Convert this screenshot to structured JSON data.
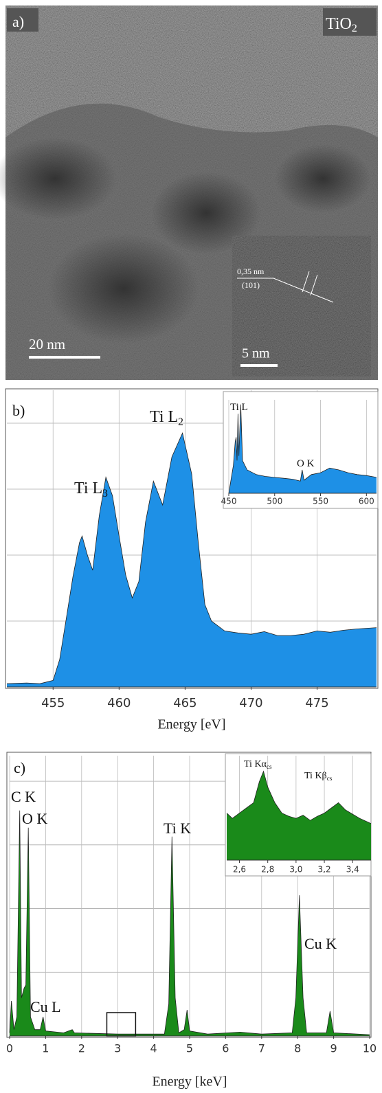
{
  "panel_a": {
    "label": "a)",
    "compound": {
      "text": "TiO",
      "sub": "2"
    },
    "scale_bar": "20 nm",
    "inset": {
      "scale_bar": "5 nm",
      "spacing": "0,35 nm",
      "plane": "(101)"
    }
  },
  "chart_data": [
    {
      "type": "area",
      "panel_label": "b)",
      "x_label": "Energy [eV]",
      "color": "#1e90e6",
      "xlim": [
        451.5,
        479.5
      ],
      "xticks": [
        455,
        460,
        465,
        470,
        475
      ],
      "ylim": [
        0,
        4.5
      ],
      "ygrid": [
        1,
        2,
        3,
        4
      ],
      "x": [
        451.5,
        453,
        454,
        455,
        455.5,
        456,
        456.5,
        457,
        457.2,
        457.6,
        458,
        458.5,
        459,
        459.5,
        460,
        460.5,
        461,
        461.5,
        462,
        462.6,
        463.3,
        464,
        464.8,
        465.5,
        466,
        466.5,
        467,
        468,
        469,
        470,
        471,
        472,
        473,
        474,
        475,
        476,
        477,
        478,
        479.5
      ],
      "values": [
        0.05,
        0.06,
        0.05,
        0.1,
        0.42,
        1.04,
        1.67,
        2.19,
        2.29,
        2.0,
        1.77,
        2.6,
        3.18,
        2.9,
        2.29,
        1.7,
        1.35,
        1.6,
        2.5,
        3.12,
        2.76,
        3.49,
        3.85,
        3.23,
        2.19,
        1.25,
        1.0,
        0.85,
        0.82,
        0.8,
        0.84,
        0.78,
        0.78,
        0.8,
        0.85,
        0.83,
        0.86,
        0.88,
        0.9
      ],
      "annotations": [
        {
          "text": "Ti L",
          "sub": "3"
        },
        {
          "text": "Ti L",
          "sub": "2"
        }
      ]
    },
    {
      "type": "area",
      "color": "#1e90e6",
      "xlim": [
        450,
        611
      ],
      "xticks": [
        450,
        500,
        550,
        600
      ],
      "ylim": [
        0,
        1
      ],
      "grid": true,
      "x": [
        450,
        455,
        457,
        458,
        459,
        460,
        461,
        463,
        465,
        470,
        480,
        490,
        500,
        510,
        520,
        528,
        530,
        532,
        540,
        550,
        560,
        570,
        580,
        590,
        600,
        611
      ],
      "values": [
        0.0,
        0.3,
        0.55,
        0.6,
        0.35,
        0.85,
        0.4,
        0.95,
        0.35,
        0.25,
        0.2,
        0.18,
        0.17,
        0.16,
        0.15,
        0.13,
        0.25,
        0.14,
        0.2,
        0.22,
        0.27,
        0.25,
        0.22,
        0.2,
        0.19,
        0.17
      ],
      "annotations": [
        {
          "text": "Ti L"
        },
        {
          "text": "O K"
        }
      ]
    },
    {
      "type": "area",
      "panel_label": "c)",
      "x_label": "Energy [keV]",
      "color": "#1a8a1a",
      "xlim": [
        0,
        10
      ],
      "xticks": [
        0,
        1,
        2,
        3,
        4,
        5,
        6,
        7,
        8,
        9,
        10
      ],
      "ylim": [
        0,
        4.4
      ],
      "ygrid": [
        1,
        2,
        3,
        4
      ],
      "inset_region": [
        2.7,
        3.5
      ],
      "x": [
        0,
        0.05,
        0.12,
        0.2,
        0.28,
        0.33,
        0.4,
        0.45,
        0.52,
        0.58,
        0.7,
        0.85,
        0.93,
        1.0,
        1.5,
        1.74,
        1.8,
        3,
        4.3,
        4.42,
        4.51,
        4.6,
        4.7,
        4.85,
        4.93,
        5.0,
        5.5,
        6.4,
        7,
        7.85,
        7.95,
        8.05,
        8.15,
        8.25,
        8.8,
        8.9,
        9.0,
        10
      ],
      "values": [
        0.05,
        0.55,
        0.1,
        0.3,
        3.54,
        0.6,
        0.75,
        0.8,
        3.27,
        0.3,
        0.1,
        0.1,
        0.3,
        0.08,
        0.05,
        0.1,
        0.05,
        0.03,
        0.03,
        0.5,
        3.13,
        0.6,
        0.05,
        0.1,
        0.41,
        0.08,
        0.03,
        0.06,
        0.03,
        0.05,
        0.6,
        2.21,
        0.6,
        0.05,
        0.05,
        0.39,
        0.05,
        0.02
      ],
      "annotations": [
        {
          "text": "C K"
        },
        {
          "text": "O K"
        },
        {
          "text": "Ti K"
        },
        {
          "text": "Cu K"
        },
        {
          "text": "Cu L"
        }
      ]
    },
    {
      "type": "area",
      "color": "#1a8a1a",
      "xlim": [
        2.51,
        3.53
      ],
      "grid": true,
      "ylim": [
        0,
        1
      ],
      "xticks": [
        {
          "value": 2.6,
          "label": "2,6"
        },
        {
          "value": 2.8,
          "label": "2,8"
        },
        {
          "value": 3.0,
          "label": "3,0"
        },
        {
          "value": 3.2,
          "label": "3,2"
        },
        {
          "value": 3.4,
          "label": "3,4"
        }
      ],
      "x": [
        2.51,
        2.55,
        2.6,
        2.65,
        2.7,
        2.74,
        2.77,
        2.8,
        2.85,
        2.9,
        2.95,
        3.0,
        3.05,
        3.1,
        3.15,
        3.2,
        3.25,
        3.3,
        3.35,
        3.4,
        3.45,
        3.53
      ],
      "values": [
        0.45,
        0.4,
        0.45,
        0.5,
        0.55,
        0.75,
        0.85,
        0.7,
        0.55,
        0.45,
        0.42,
        0.4,
        0.43,
        0.38,
        0.42,
        0.45,
        0.5,
        0.55,
        0.48,
        0.44,
        0.4,
        0.35
      ],
      "annotations": [
        {
          "text": "Ti Kα",
          "sub": "cs"
        },
        {
          "text": "Ti Kβ",
          "sub": "cs"
        }
      ]
    }
  ]
}
